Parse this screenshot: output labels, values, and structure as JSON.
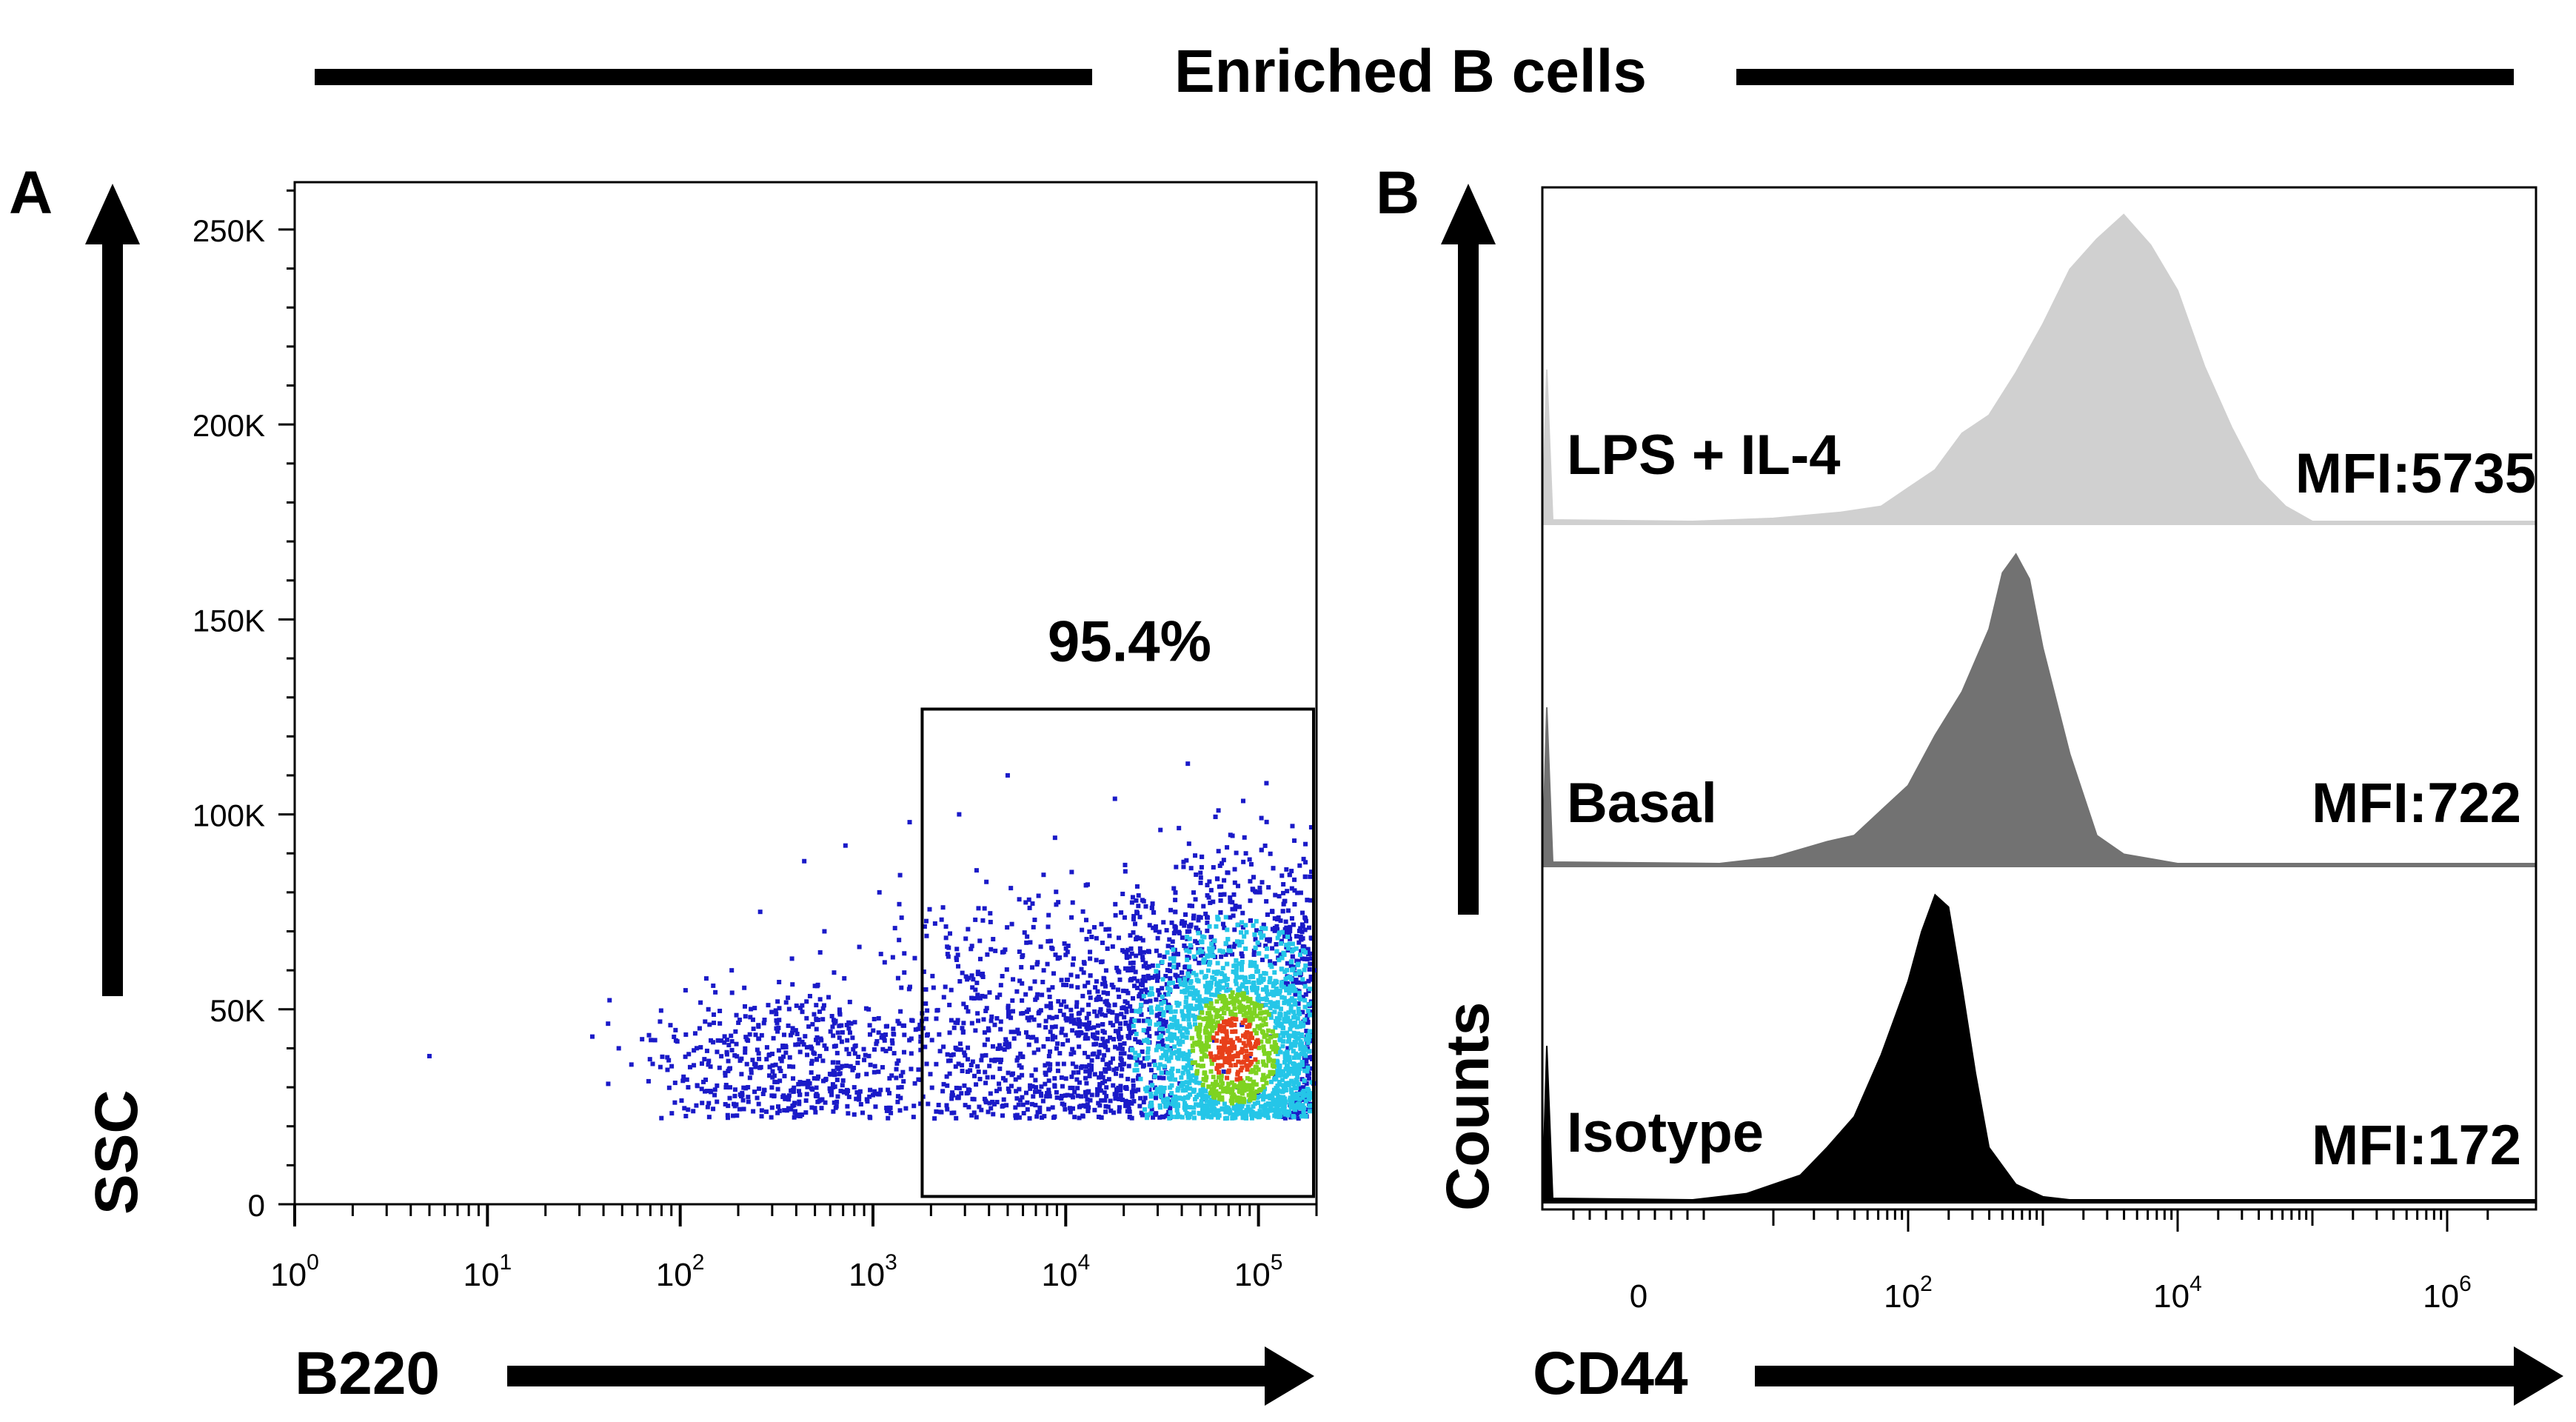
{
  "figure_title": "Enriched B cells",
  "chart_data": [
    {
      "panel_label": "A",
      "type": "scatter",
      "xlabel": "B220",
      "ylabel": "SSC",
      "xscale": "log",
      "xlim": [
        1,
        200000
      ],
      "ylim": [
        0,
        262144
      ],
      "x_ticks": [
        {
          "value": 1,
          "base": "10",
          "exp": "0"
        },
        {
          "value": 10,
          "base": "10",
          "exp": "1"
        },
        {
          "value": 100,
          "base": "10",
          "exp": "2"
        },
        {
          "value": 1000,
          "base": "10",
          "exp": "3"
        },
        {
          "value": 10000,
          "base": "10",
          "exp": "4"
        },
        {
          "value": 100000,
          "base": "10",
          "exp": "5"
        }
      ],
      "y_ticks": [
        {
          "value": 0,
          "label": "0"
        },
        {
          "value": 50000,
          "label": "50K"
        },
        {
          "value": 100000,
          "label": "100K"
        },
        {
          "value": 150000,
          "label": "150K"
        },
        {
          "value": 200000,
          "label": "200K"
        },
        {
          "value": 250000,
          "label": "250K"
        }
      ],
      "gate": {
        "x_range": [
          1800,
          200000
        ],
        "y_range": [
          2000,
          127000
        ],
        "label": "95.4%"
      },
      "points": [
        {
          "x": 5,
          "y": 38000
        },
        {
          "x": 35,
          "y": 43000
        },
        {
          "x": 48,
          "y": 40000
        },
        {
          "x": 72,
          "y": 36000
        },
        {
          "x": 95,
          "y": 42000
        },
        {
          "x": 110,
          "y": 30000
        },
        {
          "x": 140,
          "y": 50000
        },
        {
          "x": 160,
          "y": 35000
        },
        {
          "x": 185,
          "y": 60000
        },
        {
          "x": 210,
          "y": 28000
        },
        {
          "x": 240,
          "y": 45000
        },
        {
          "x": 260,
          "y": 75000
        },
        {
          "x": 290,
          "y": 33000
        },
        {
          "x": 320,
          "y": 52000
        },
        {
          "x": 350,
          "y": 27000
        },
        {
          "x": 380,
          "y": 63000
        },
        {
          "x": 410,
          "y": 41000
        },
        {
          "x": 440,
          "y": 88000
        },
        {
          "x": 470,
          "y": 31000
        },
        {
          "x": 500,
          "y": 56000
        },
        {
          "x": 530,
          "y": 38000
        },
        {
          "x": 560,
          "y": 70000
        },
        {
          "x": 600,
          "y": 29000
        },
        {
          "x": 640,
          "y": 47000
        },
        {
          "x": 680,
          "y": 35000
        },
        {
          "x": 720,
          "y": 92000
        },
        {
          "x": 760,
          "y": 44000
        },
        {
          "x": 800,
          "y": 30000
        },
        {
          "x": 850,
          "y": 66000
        },
        {
          "x": 900,
          "y": 37000
        },
        {
          "x": 950,
          "y": 50000
        },
        {
          "x": 1000,
          "y": 28000
        },
        {
          "x": 1080,
          "y": 80000
        },
        {
          "x": 1150,
          "y": 42000
        },
        {
          "x": 1250,
          "y": 33000
        },
        {
          "x": 1350,
          "y": 58000
        },
        {
          "x": 1450,
          "y": 39000
        },
        {
          "x": 1550,
          "y": 98000
        },
        {
          "x": 1650,
          "y": 31000
        },
        {
          "x": 1750,
          "y": 46000
        },
        {
          "x": 1900,
          "y": 36000
        },
        {
          "x": 2100,
          "y": 72000
        },
        {
          "x": 2300,
          "y": 29000
        },
        {
          "x": 2500,
          "y": 44000
        },
        {
          "x": 2800,
          "y": 100000
        },
        {
          "x": 3100,
          "y": 34000
        },
        {
          "x": 3400,
          "y": 55000
        },
        {
          "x": 3800,
          "y": 27000
        },
        {
          "x": 4200,
          "y": 68000
        },
        {
          "x": 4600,
          "y": 40000
        },
        {
          "x": 5000,
          "y": 110000
        },
        {
          "x": 5500,
          "y": 32000
        },
        {
          "x": 6000,
          "y": 49000
        },
        {
          "x": 6500,
          "y": 76000
        },
        {
          "x": 7000,
          "y": 30000
        },
        {
          "x": 7600,
          "y": 57000
        },
        {
          "x": 8200,
          "y": 38000
        },
        {
          "x": 8800,
          "y": 94000
        },
        {
          "x": 9500,
          "y": 44000
        },
        {
          "x": 10200,
          "y": 28000
        },
        {
          "x": 11000,
          "y": 63000
        },
        {
          "x": 12000,
          "y": 35000
        },
        {
          "x": 13000,
          "y": 82000
        },
        {
          "x": 14000,
          "y": 41000
        },
        {
          "x": 15000,
          "y": 30000
        },
        {
          "x": 16500,
          "y": 54000
        },
        {
          "x": 18000,
          "y": 104000
        },
        {
          "x": 19500,
          "y": 37000
        },
        {
          "x": 21000,
          "y": 60000
        },
        {
          "x": 23000,
          "y": 29000
        },
        {
          "x": 25000,
          "y": 78000
        },
        {
          "x": 27000,
          "y": 45000
        },
        {
          "x": 29000,
          "y": 33000
        },
        {
          "x": 31000,
          "y": 96000
        },
        {
          "x": 33000,
          "y": 52000
        },
        {
          "x": 35000,
          "y": 40000
        },
        {
          "x": 37000,
          "y": 70000
        },
        {
          "x": 39000,
          "y": 31000
        },
        {
          "x": 41000,
          "y": 58000
        },
        {
          "x": 43000,
          "y": 113000
        },
        {
          "x": 45000,
          "y": 36000
        },
        {
          "x": 47000,
          "y": 48000
        },
        {
          "x": 50000,
          "y": 85000
        },
        {
          "x": 53000,
          "y": 27000
        },
        {
          "x": 56000,
          "y": 62000
        },
        {
          "x": 59000,
          "y": 42000
        },
        {
          "x": 62000,
          "y": 101000
        },
        {
          "x": 66000,
          "y": 34000
        },
        {
          "x": 70000,
          "y": 55000
        },
        {
          "x": 74000,
          "y": 74000
        },
        {
          "x": 78000,
          "y": 30000
        },
        {
          "x": 82000,
          "y": 46000
        },
        {
          "x": 86000,
          "y": 90000
        },
        {
          "x": 90000,
          "y": 38000
        },
        {
          "x": 95000,
          "y": 65000
        },
        {
          "x": 100000,
          "y": 28000
        },
        {
          "x": 105000,
          "y": 51000
        },
        {
          "x": 110000,
          "y": 108000
        },
        {
          "x": 116000,
          "y": 43000
        },
        {
          "x": 122000,
          "y": 33000
        },
        {
          "x": 128000,
          "y": 79000
        },
        {
          "x": 135000,
          "y": 57000
        },
        {
          "x": 142000,
          "y": 40000
        },
        {
          "x": 150000,
          "y": 97000
        },
        {
          "x": 158000,
          "y": 35000
        },
        {
          "x": 166000,
          "y": 68000
        },
        {
          "x": 175000,
          "y": 47000
        },
        {
          "x": 185000,
          "y": 84000
        },
        {
          "x": 193000,
          "y": 31000
        },
        {
          "x": 198000,
          "y": 60000
        }
      ],
      "density_hotspots": [
        {
          "x": 75000,
          "y": 40000,
          "level": "high"
        },
        {
          "x": 60000,
          "y": 52000,
          "level": "medium"
        },
        {
          "x": 100000,
          "y": 38000,
          "level": "medium"
        },
        {
          "x": 55000,
          "y": 30000,
          "level": "low"
        },
        {
          "x": 130000,
          "y": 65000,
          "level": "low"
        },
        {
          "x": 300,
          "y": 35000,
          "level": "low"
        }
      ],
      "point_colors": {
        "sparse": "#1a1ac8",
        "low": "#25c6e8",
        "medium": "#7ed321",
        "high": "#e8401a"
      }
    },
    {
      "panel_label": "B",
      "type": "area",
      "xlabel": "CD44",
      "ylabel": "Counts",
      "x_ticks": [
        {
          "value": 0,
          "base": "0",
          "exp": ""
        },
        {
          "value": 2,
          "base": "10",
          "exp": "2"
        },
        {
          "value": 4,
          "base": "10",
          "exp": "4"
        },
        {
          "value": 6,
          "base": "10",
          "exp": "6"
        }
      ],
      "x_ticks_note": "values are log10 decades on a biexponential axis",
      "series": [
        {
          "name": "LPS + IL-4",
          "mfi_label": "MFI:5735",
          "color": "#d0d0d0",
          "x": [
            0.4,
            1.0,
            1.5,
            1.8,
            2.0,
            2.2,
            2.4,
            2.6,
            2.8,
            3.0,
            3.2,
            3.4,
            3.6,
            3.8,
            4.0,
            4.2,
            4.4,
            4.6,
            4.8,
            5.0
          ],
          "values": [
            0,
            0.01,
            0.03,
            0.06,
            0.1,
            0.18,
            0.28,
            0.36,
            0.48,
            0.66,
            0.82,
            0.94,
            1.0,
            0.92,
            0.75,
            0.52,
            0.3,
            0.15,
            0.05,
            0
          ]
        },
        {
          "name": "Basal",
          "mfi_label": "MFI:722",
          "color": "#727272",
          "x": [
            0.6,
            1.0,
            1.4,
            1.6,
            1.8,
            2.0,
            2.2,
            2.4,
            2.5,
            2.6,
            2.7,
            2.8,
            2.9,
            3.0,
            3.2,
            3.4,
            3.6,
            4.0
          ],
          "values": [
            0,
            0.02,
            0.06,
            0.1,
            0.16,
            0.26,
            0.4,
            0.56,
            0.64,
            0.76,
            0.92,
            1.0,
            0.9,
            0.7,
            0.34,
            0.1,
            0.03,
            0
          ]
        },
        {
          "name": "Isotype",
          "mfi_label": "MFI:172",
          "color": "#000000",
          "x": [
            0.4,
            0.8,
            1.0,
            1.2,
            1.4,
            1.6,
            1.8,
            2.0,
            2.1,
            2.2,
            2.3,
            2.4,
            2.5,
            2.6,
            2.8,
            3.0,
            3.2
          ],
          "values": [
            0,
            0.02,
            0.05,
            0.09,
            0.16,
            0.28,
            0.46,
            0.72,
            0.86,
            1.0,
            0.94,
            0.7,
            0.4,
            0.18,
            0.05,
            0.01,
            0
          ]
        }
      ]
    }
  ]
}
